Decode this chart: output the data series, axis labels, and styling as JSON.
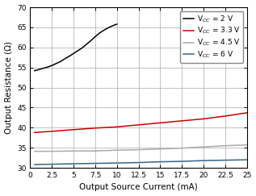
{
  "title": "",
  "xlabel": "Output Source Current (mA)",
  "ylabel": "Output Resistance (Ω)",
  "xlim": [
    0,
    25
  ],
  "ylim": [
    30,
    70
  ],
  "yticks": [
    30,
    35,
    40,
    45,
    50,
    55,
    60,
    65,
    70
  ],
  "xticks": [
    0,
    2.5,
    5,
    7.5,
    10,
    12.5,
    15,
    17.5,
    20,
    22.5,
    25
  ],
  "series": [
    {
      "label": "V$_{CC}$ = 2 V",
      "color": "#000000",
      "x": [
        0.5,
        1.0,
        1.5,
        2.0,
        2.5,
        3.0,
        3.5,
        4.0,
        4.5,
        5.0,
        5.5,
        6.0,
        6.5,
        7.0,
        7.5,
        8.0,
        8.5,
        9.0,
        9.5,
        10.0
      ],
      "y": [
        54.2,
        54.5,
        54.8,
        55.1,
        55.5,
        56.0,
        56.5,
        57.2,
        57.8,
        58.5,
        59.2,
        59.9,
        60.8,
        61.7,
        62.7,
        63.6,
        64.3,
        64.9,
        65.4,
        65.8
      ]
    },
    {
      "label": "V$_{CC}$ = 3.3 V",
      "color": "#cc0000",
      "x": [
        0.5,
        2.5,
        5.0,
        7.5,
        10.0,
        12.5,
        15.0,
        17.5,
        20.0,
        22.5,
        25.0
      ],
      "y": [
        38.8,
        39.1,
        39.5,
        39.9,
        40.2,
        40.7,
        41.2,
        41.7,
        42.2,
        42.9,
        43.7
      ]
    },
    {
      "label": "V$_{CC}$ = 4.5 V",
      "color": "#aaaaaa",
      "x": [
        0.5,
        2.5,
        5.0,
        7.5,
        10.0,
        12.5,
        15.0,
        17.5,
        20.0,
        22.5,
        25.0
      ],
      "y": [
        34.1,
        34.1,
        34.2,
        34.2,
        34.4,
        34.5,
        34.7,
        34.9,
        35.2,
        35.5,
        35.7
      ]
    },
    {
      "label": "V$_{CC}$ = 6 V",
      "color": "#336688",
      "x": [
        0.5,
        2.5,
        5.0,
        7.5,
        10.0,
        12.5,
        15.0,
        17.5,
        20.0,
        22.5,
        25.0
      ],
      "y": [
        30.8,
        30.9,
        31.0,
        31.1,
        31.2,
        31.3,
        31.5,
        31.6,
        31.8,
        31.9,
        32.0
      ]
    }
  ],
  "legend_loc": "upper right",
  "grid_color": "#aaaaaa",
  "background_color": "#ffffff",
  "tick_fontsize": 6.5,
  "label_fontsize": 7.5,
  "legend_fontsize": 6.5
}
